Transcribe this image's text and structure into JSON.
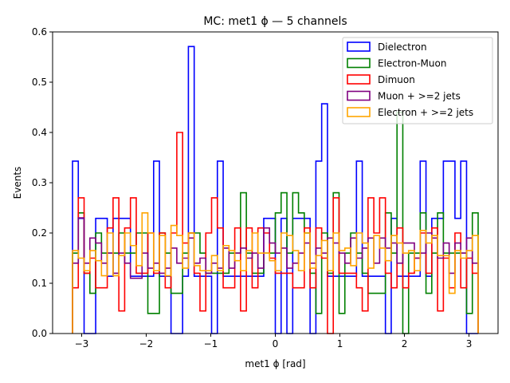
{
  "chart_data": {
    "type": "step-histogram",
    "title": "MC: met1 ϕ — 5 channels",
    "xlabel": "met1 ϕ [rad]",
    "ylabel": "Events",
    "xlim": [
      -3.45,
      3.45
    ],
    "ylim": [
      0.0,
      0.6
    ],
    "xticks": [
      -3,
      -2,
      -1,
      0,
      1,
      2,
      3
    ],
    "xtick_labels": [
      "−3",
      "−2",
      "−1",
      "0",
      "1",
      "2",
      "3"
    ],
    "yticks": [
      0.0,
      0.1,
      0.2,
      0.3,
      0.4,
      0.5,
      0.6
    ],
    "ytick_labels": [
      "0.0",
      "0.1",
      "0.2",
      "0.3",
      "0.4",
      "0.5",
      "0.6"
    ],
    "grid": false,
    "legend_position": "top-right",
    "bin_range": [
      -3.14159,
      3.14159
    ],
    "n_bins": 70,
    "series": [
      {
        "name": "Dielectron",
        "color": "#0000ff",
        "values": [
          0.343,
          0.229,
          0.0,
          0.0,
          0.229,
          0.229,
          0.114,
          0.229,
          0.229,
          0.229,
          0.114,
          0.114,
          0.114,
          0.114,
          0.343,
          0.114,
          0.114,
          0.0,
          0.0,
          0.114,
          0.571,
          0.114,
          0.114,
          0.114,
          0.0,
          0.343,
          0.114,
          0.114,
          0.114,
          0.114,
          0.114,
          0.114,
          0.114,
          0.229,
          0.229,
          0.0,
          0.229,
          0.0,
          0.229,
          0.229,
          0.229,
          0.0,
          0.343,
          0.457,
          0.114,
          0.114,
          0.114,
          0.114,
          0.114,
          0.343,
          0.114,
          0.114,
          0.114,
          0.114,
          0.0,
          0.229,
          0.114,
          0.114,
          0.114,
          0.114,
          0.343,
          0.114,
          0.229,
          0.229,
          0.343,
          0.343,
          0.229,
          0.343,
          0.0,
          0.0
        ]
      },
      {
        "name": "Electron-Muon",
        "color": "#008000",
        "values": [
          0.16,
          0.24,
          0.12,
          0.08,
          0.2,
          0.16,
          0.16,
          0.16,
          0.2,
          0.16,
          0.16,
          0.2,
          0.2,
          0.04,
          0.04,
          0.2,
          0.16,
          0.08,
          0.08,
          0.16,
          0.2,
          0.2,
          0.16,
          0.12,
          0.12,
          0.12,
          0.12,
          0.16,
          0.16,
          0.28,
          0.16,
          0.12,
          0.12,
          0.16,
          0.16,
          0.24,
          0.28,
          0.16,
          0.28,
          0.24,
          0.2,
          0.12,
          0.04,
          0.2,
          0.12,
          0.28,
          0.04,
          0.16,
          0.2,
          0.16,
          0.12,
          0.08,
          0.08,
          0.08,
          0.24,
          0.16,
          0.44,
          0.0,
          0.16,
          0.16,
          0.24,
          0.08,
          0.16,
          0.24,
          0.16,
          0.16,
          0.16,
          0.16,
          0.04,
          0.24
        ]
      },
      {
        "name": "Dimuon",
        "color": "#ff0000",
        "values": [
          0.091,
          0.27,
          0.12,
          0.15,
          0.091,
          0.091,
          0.21,
          0.27,
          0.045,
          0.21,
          0.27,
          0.12,
          0.12,
          0.2,
          0.12,
          0.2,
          0.091,
          0.2,
          0.4,
          0.18,
          0.2,
          0.12,
          0.045,
          0.2,
          0.27,
          0.21,
          0.091,
          0.091,
          0.21,
          0.045,
          0.21,
          0.091,
          0.21,
          0.2,
          0.15,
          0.12,
          0.12,
          0.12,
          0.091,
          0.091,
          0.21,
          0.091,
          0.21,
          0.15,
          0.0,
          0.27,
          0.12,
          0.12,
          0.12,
          0.091,
          0.045,
          0.27,
          0.2,
          0.27,
          0.12,
          0.091,
          0.21,
          0.091,
          0.12,
          0.15,
          0.2,
          0.12,
          0.21,
          0.045,
          0.15,
          0.091,
          0.2,
          0.091,
          0.15,
          0.12
        ]
      },
      {
        "name": "Muon + >=2 jets",
        "color": "#800080",
        "values": [
          0.14,
          0.23,
          0.14,
          0.19,
          0.18,
          0.14,
          0.16,
          0.12,
          0.16,
          0.14,
          0.11,
          0.11,
          0.16,
          0.13,
          0.14,
          0.12,
          0.13,
          0.17,
          0.14,
          0.15,
          0.19,
          0.14,
          0.15,
          0.12,
          0.14,
          0.13,
          0.17,
          0.13,
          0.16,
          0.17,
          0.15,
          0.16,
          0.13,
          0.21,
          0.18,
          0.16,
          0.17,
          0.13,
          0.14,
          0.16,
          0.18,
          0.14,
          0.17,
          0.16,
          0.19,
          0.18,
          0.16,
          0.14,
          0.19,
          0.15,
          0.17,
          0.19,
          0.14,
          0.19,
          0.17,
          0.18,
          0.14,
          0.18,
          0.18,
          0.15,
          0.16,
          0.2,
          0.19,
          0.15,
          0.18,
          0.12,
          0.18,
          0.16,
          0.19,
          0.14
        ]
      },
      {
        "name": "Electron + >=2 jets",
        "color": "#ffa500",
        "values": [
          0.165,
          0.15,
          0.125,
          0.165,
          0.145,
          0.115,
          0.2,
          0.115,
          0.155,
          0.2,
          0.175,
          0.135,
          0.24,
          0.2,
          0.125,
          0.195,
          0.115,
          0.215,
          0.195,
          0.13,
          0.2,
          0.135,
          0.125,
          0.125,
          0.155,
          0.125,
          0.175,
          0.165,
          0.145,
          0.125,
          0.165,
          0.2,
          0.16,
          0.16,
          0.145,
          0.125,
          0.2,
          0.195,
          0.165,
          0.125,
          0.2,
          0.13,
          0.155,
          0.185,
          0.125,
          0.2,
          0.165,
          0.17,
          0.135,
          0.2,
          0.18,
          0.13,
          0.195,
          0.17,
          0.145,
          0.195,
          0.18,
          0.16,
          0.165,
          0.125,
          0.205,
          0.18,
          0.195,
          0.155,
          0.155,
          0.08,
          0.165,
          0.15,
          0.165,
          0.195
        ]
      }
    ]
  }
}
